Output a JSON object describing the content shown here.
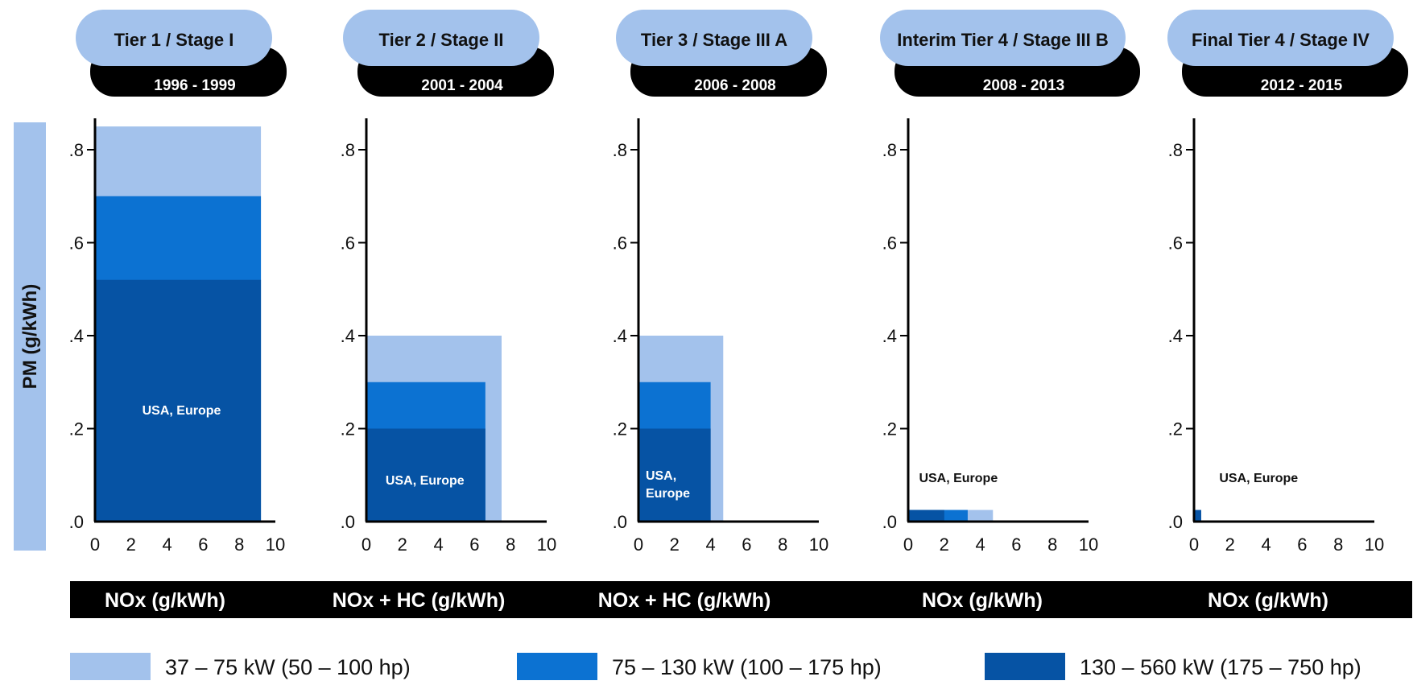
{
  "chart_data": {
    "type": "bar",
    "ylabel": "PM (g/kWh)",
    "y_ticks": [
      ".8",
      ".6",
      ".4",
      ".2",
      ".0"
    ],
    "y_tick_values": [
      0.8,
      0.6,
      0.4,
      0.2,
      0.0
    ],
    "x_ticks": [
      "0",
      "2",
      "4",
      "6",
      "8",
      "10"
    ],
    "xlim": [
      0,
      10
    ],
    "ylim": [
      0,
      0.8
    ],
    "colors": {
      "37-75": "#a3c2ec",
      "75-130": "#0c72d2",
      "130-560": "#0653a4",
      "accent_black": "#000000"
    },
    "legend": [
      {
        "key": "37-75",
        "label": "37 – 75 kW  (50 – 100 hp)"
      },
      {
        "key": "75-130",
        "label": "75 – 130 kW  (100 – 175 hp)"
      },
      {
        "key": "130-560",
        "label": "130 – 560 kW  (175 – 750 hp)"
      }
    ],
    "panels": [
      {
        "title": "Tier 1 / Stage I",
        "years": "1996 - 1999",
        "xlabel": "NOx (g/kWh)",
        "region_label": "USA, Europe",
        "region_at": [
          4.8,
          0.23
        ],
        "region_color": "#ffffff",
        "rects": [
          {
            "key": "37-75",
            "nox": 9.2,
            "pm": 0.85
          },
          {
            "key": "75-130",
            "nox": 9.2,
            "pm": 0.7
          },
          {
            "key": "130-560",
            "nox": 9.2,
            "pm": 0.52
          }
        ]
      },
      {
        "title": "Tier 2 / Stage II",
        "years": "2001 - 2004",
        "xlabel": "NOx + HC (g/kWh)",
        "region_label": "USA, Europe",
        "region_at": [
          3.3,
          0.08
        ],
        "region_color": "#ffffff",
        "rects": [
          {
            "key": "37-75",
            "nox": 7.5,
            "pm": 0.4
          },
          {
            "key": "75-130",
            "nox": 6.6,
            "pm": 0.3
          },
          {
            "key": "130-560",
            "nox": 6.6,
            "pm": 0.2
          }
        ]
      },
      {
        "title": "Tier 3 / Stage III A",
        "years": "2006 - 2008",
        "xlabel": "NOx + HC (g/kWh)",
        "region_label": "USA,",
        "region_label_2": "Europe",
        "region_at": [
          0.4,
          0.09
        ],
        "region_color": "#ffffff",
        "rects": [
          {
            "key": "37-75",
            "nox": 4.7,
            "pm": 0.4
          },
          {
            "key": "75-130",
            "nox": 4.0,
            "pm": 0.3
          },
          {
            "key": "130-560",
            "nox": 4.0,
            "pm": 0.2
          }
        ]
      },
      {
        "title": "Interim Tier 4 / Stage III B",
        "years": "2008 - 2013",
        "xlabel": "NOx (g/kWh)",
        "region_label": "USA, Europe",
        "region_at": [
          0.6,
          0.085
        ],
        "region_color": "#111111",
        "rects": [
          {
            "key": "37-75",
            "nox": 4.7,
            "pm": 0.025
          },
          {
            "key": "75-130",
            "nox": 3.3,
            "pm": 0.025
          },
          {
            "key": "130-560",
            "nox": 2.0,
            "pm": 0.025
          }
        ]
      },
      {
        "title": "Final Tier 4 / Stage IV",
        "years": "2012 - 2015",
        "xlabel": "NOx (g/kWh)",
        "region_label": "USA, Europe",
        "region_at": [
          1.4,
          0.085
        ],
        "region_color": "#111111",
        "rects": [
          {
            "key": "130-560",
            "nox": 0.4,
            "pm": 0.025
          }
        ]
      }
    ]
  }
}
